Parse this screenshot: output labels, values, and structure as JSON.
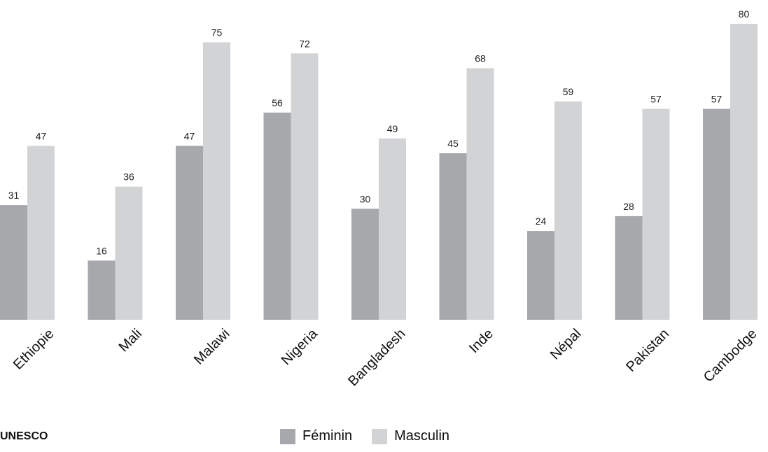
{
  "chart_data": {
    "type": "bar",
    "categories": [
      "Ethiopie",
      "Mali",
      "Malawi",
      "Nigeria",
      "Bangladesh",
      "Inde",
      "Népal",
      "Pakistan",
      "Cambodge"
    ],
    "series": [
      {
        "name": "Féminin",
        "color": "#a7a8ab",
        "values": [
          31,
          16,
          47,
          56,
          30,
          45,
          24,
          28,
          57
        ]
      },
      {
        "name": "Masculin",
        "color": "#d2d3d5",
        "values": [
          47,
          36,
          75,
          72,
          49,
          68,
          59,
          57,
          80
        ]
      }
    ],
    "ylim": [
      0,
      80
    ],
    "grid": false,
    "legend_placement": "bottom"
  },
  "source_label": "UNESCO",
  "legend": {
    "female_label": "Féminin",
    "male_label": "Masculin"
  }
}
